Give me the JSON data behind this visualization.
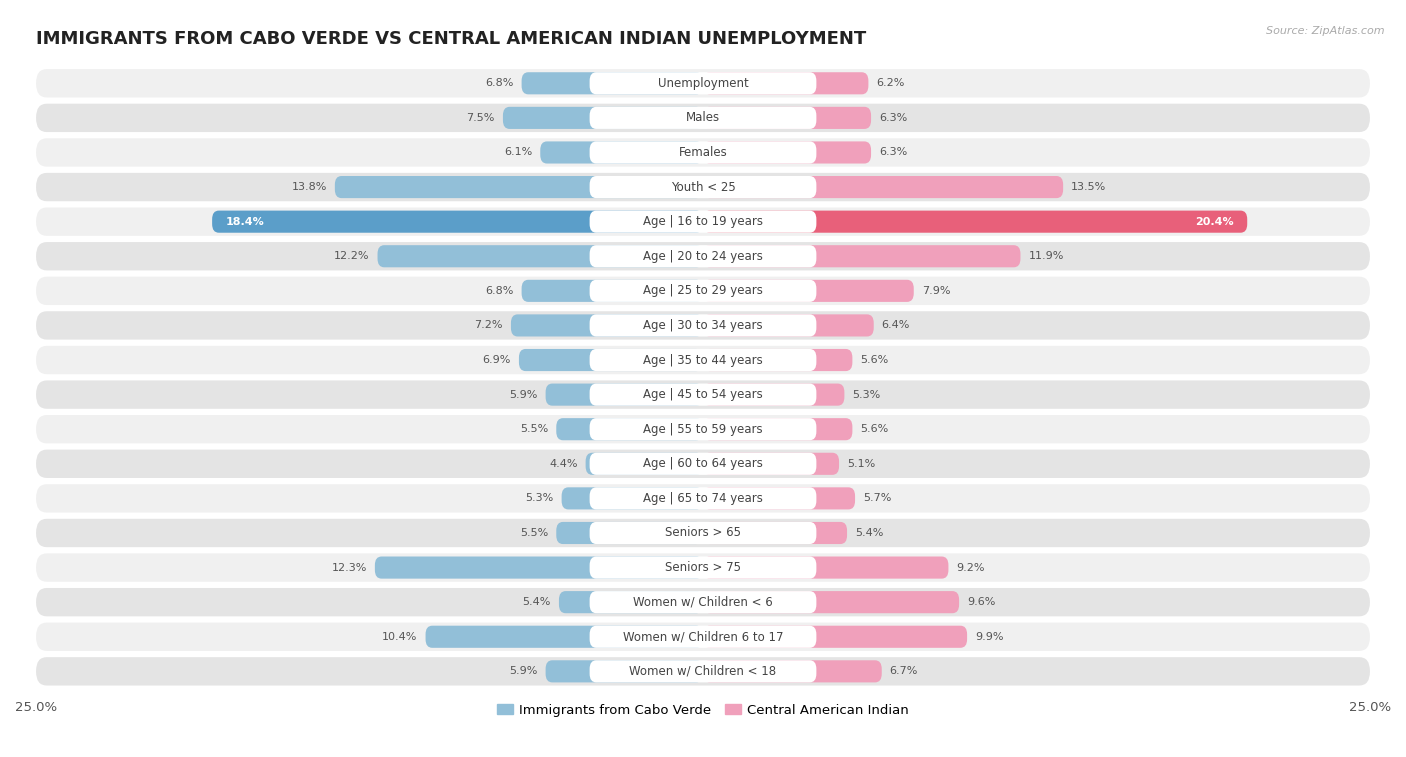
{
  "title": "IMMIGRANTS FROM CABO VERDE VS CENTRAL AMERICAN INDIAN UNEMPLOYMENT",
  "source": "Source: ZipAtlas.com",
  "categories": [
    "Unemployment",
    "Males",
    "Females",
    "Youth < 25",
    "Age | 16 to 19 years",
    "Age | 20 to 24 years",
    "Age | 25 to 29 years",
    "Age | 30 to 34 years",
    "Age | 35 to 44 years",
    "Age | 45 to 54 years",
    "Age | 55 to 59 years",
    "Age | 60 to 64 years",
    "Age | 65 to 74 years",
    "Seniors > 65",
    "Seniors > 75",
    "Women w/ Children < 6",
    "Women w/ Children 6 to 17",
    "Women w/ Children < 18"
  ],
  "left_values": [
    6.8,
    7.5,
    6.1,
    13.8,
    18.4,
    12.2,
    6.8,
    7.2,
    6.9,
    5.9,
    5.5,
    4.4,
    5.3,
    5.5,
    12.3,
    5.4,
    10.4,
    5.9
  ],
  "right_values": [
    6.2,
    6.3,
    6.3,
    13.5,
    20.4,
    11.9,
    7.9,
    6.4,
    5.6,
    5.3,
    5.6,
    5.1,
    5.7,
    5.4,
    9.2,
    9.6,
    9.9,
    6.7
  ],
  "left_color": "#92BFD8",
  "right_color": "#F0A0BB",
  "highlight_left_color": "#5B9EC9",
  "highlight_right_color": "#E8607A",
  "xlim": 25.0,
  "background_color": "#ffffff",
  "row_bg_color": "#e8e8e8",
  "bar_row_bg_light": "#f0f0f0",
  "bar_row_bg_dark": "#e4e4e4",
  "legend_left": "Immigrants from Cabo Verde",
  "legend_right": "Central American Indian",
  "title_fontsize": 13,
  "label_fontsize": 8.5,
  "value_fontsize": 8.0
}
